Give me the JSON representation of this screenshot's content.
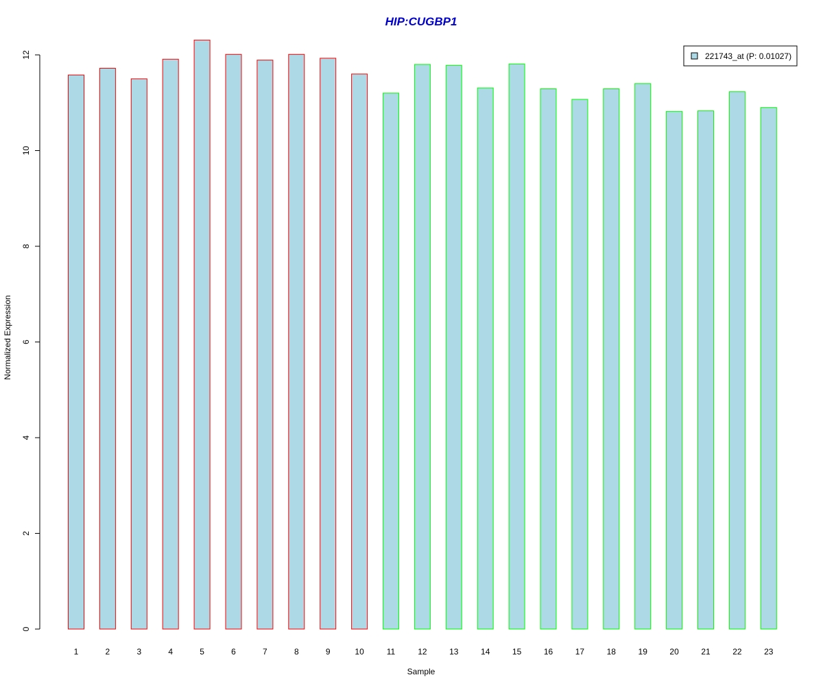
{
  "chart_data": {
    "type": "bar",
    "title": "HIP:CUGBP1",
    "xlabel": "Sample",
    "ylabel": "Normalized Expression",
    "categories": [
      "1",
      "2",
      "3",
      "4",
      "5",
      "6",
      "7",
      "8",
      "9",
      "10",
      "11",
      "12",
      "13",
      "14",
      "15",
      "16",
      "17",
      "18",
      "19",
      "20",
      "21",
      "22",
      "23"
    ],
    "values": [
      11.58,
      11.72,
      11.5,
      11.91,
      12.31,
      12.01,
      11.89,
      12.01,
      11.93,
      11.6,
      11.2,
      11.8,
      11.78,
      11.31,
      11.81,
      11.29,
      11.07,
      11.29,
      11.4,
      10.82,
      10.83,
      11.23,
      10.9
    ],
    "groups": [
      "red",
      "red",
      "red",
      "red",
      "red",
      "red",
      "red",
      "red",
      "red",
      "red",
      "green",
      "green",
      "green",
      "green",
      "green",
      "green",
      "green",
      "green",
      "green",
      "green",
      "green",
      "green",
      "green"
    ],
    "ylim": [
      0,
      12
    ],
    "yticks": [
      0,
      2,
      4,
      6,
      8,
      10,
      12
    ],
    "grid": false,
    "legend": {
      "placement": "top-right",
      "entries": [
        {
          "label": "221743_at (P: 0.01027)",
          "fill": "#add8e6"
        }
      ]
    },
    "colors": {
      "bar_fill": "#add8e6",
      "red": "#ff0000",
      "green": "#00ff00",
      "title": "#0000cd"
    }
  }
}
